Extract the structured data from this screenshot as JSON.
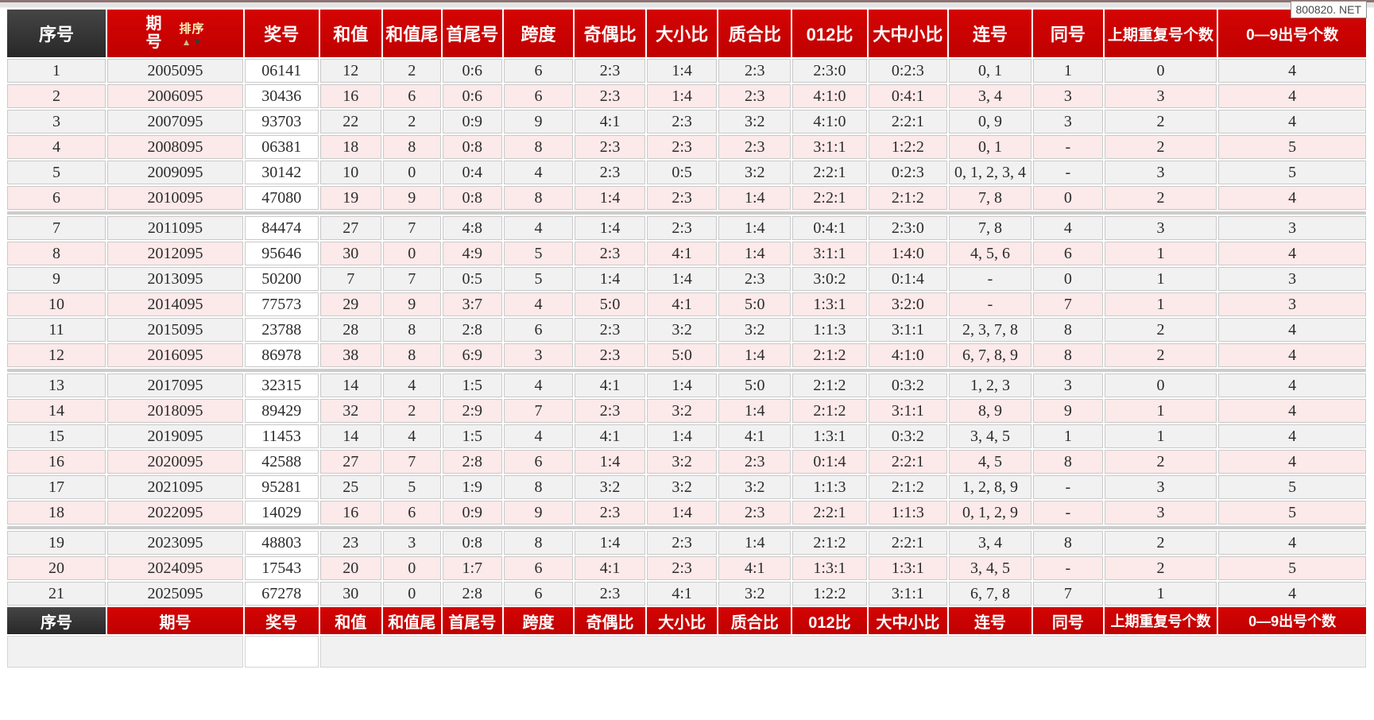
{
  "watermark": "800820. NET",
  "period_header": {
    "line1": "期",
    "line2": "号"
  },
  "sort": {
    "label": "排序",
    "asc_icon": "▲",
    "desc_icon": "▼"
  },
  "colors": {
    "header_red": "#cc0000",
    "header_dark": "#333333",
    "row_gray": "#f1f1f1",
    "row_pink": "#fce9e9",
    "number_col_bg": "#ffffff",
    "sort_label": "#fdf3bd"
  },
  "columns": [
    {
      "key": "seq",
      "label": "序号"
    },
    {
      "key": "period",
      "label": "期号"
    },
    {
      "key": "number",
      "label": "奖号"
    },
    {
      "key": "sum",
      "label": "和值"
    },
    {
      "key": "sum_tail",
      "label": "和值尾"
    },
    {
      "key": "first_last",
      "label": "首尾号"
    },
    {
      "key": "span",
      "label": "跨度"
    },
    {
      "key": "odd_even",
      "label": "奇偶比"
    },
    {
      "key": "big_small",
      "label": "大小比"
    },
    {
      "key": "prime_composite",
      "label": "质合比"
    },
    {
      "key": "zero_one_two",
      "label": "012比"
    },
    {
      "key": "big_mid_small",
      "label": "大中小比"
    },
    {
      "key": "consecutive",
      "label": "连号"
    },
    {
      "key": "same",
      "label": "同号"
    },
    {
      "key": "prev_repeat",
      "label": "上期重复号个数"
    },
    {
      "key": "digit_count",
      "label": "0—9出号个数"
    }
  ],
  "group_separators_after_rows": [
    6,
    12,
    18
  ],
  "rows": [
    [
      "1",
      "2005095",
      "06141",
      "12",
      "2",
      "0:6",
      "6",
      "2:3",
      "1:4",
      "2:3",
      "2:3:0",
      "0:2:3",
      "0, 1",
      "1",
      "0",
      "4"
    ],
    [
      "2",
      "2006095",
      "30436",
      "16",
      "6",
      "0:6",
      "6",
      "2:3",
      "1:4",
      "2:3",
      "4:1:0",
      "0:4:1",
      "3, 4",
      "3",
      "3",
      "4"
    ],
    [
      "3",
      "2007095",
      "93703",
      "22",
      "2",
      "0:9",
      "9",
      "4:1",
      "2:3",
      "3:2",
      "4:1:0",
      "2:2:1",
      "0, 9",
      "3",
      "2",
      "4"
    ],
    [
      "4",
      "2008095",
      "06381",
      "18",
      "8",
      "0:8",
      "8",
      "2:3",
      "2:3",
      "2:3",
      "3:1:1",
      "1:2:2",
      "0, 1",
      "-",
      "2",
      "5"
    ],
    [
      "5",
      "2009095",
      "30142",
      "10",
      "0",
      "0:4",
      "4",
      "2:3",
      "0:5",
      "3:2",
      "2:2:1",
      "0:2:3",
      "0, 1, 2, 3, 4",
      "-",
      "3",
      "5"
    ],
    [
      "6",
      "2010095",
      "47080",
      "19",
      "9",
      "0:8",
      "8",
      "1:4",
      "2:3",
      "1:4",
      "2:2:1",
      "2:1:2",
      "7, 8",
      "0",
      "2",
      "4"
    ],
    [
      "7",
      "2011095",
      "84474",
      "27",
      "7",
      "4:8",
      "4",
      "1:4",
      "2:3",
      "1:4",
      "0:4:1",
      "2:3:0",
      "7, 8",
      "4",
      "3",
      "3"
    ],
    [
      "8",
      "2012095",
      "95646",
      "30",
      "0",
      "4:9",
      "5",
      "2:3",
      "4:1",
      "1:4",
      "3:1:1",
      "1:4:0",
      "4, 5, 6",
      "6",
      "1",
      "4"
    ],
    [
      "9",
      "2013095",
      "50200",
      "7",
      "7",
      "0:5",
      "5",
      "1:4",
      "1:4",
      "2:3",
      "3:0:2",
      "0:1:4",
      "-",
      "0",
      "1",
      "3"
    ],
    [
      "10",
      "2014095",
      "77573",
      "29",
      "9",
      "3:7",
      "4",
      "5:0",
      "4:1",
      "5:0",
      "1:3:1",
      "3:2:0",
      "-",
      "7",
      "1",
      "3"
    ],
    [
      "11",
      "2015095",
      "23788",
      "28",
      "8",
      "2:8",
      "6",
      "2:3",
      "3:2",
      "3:2",
      "1:1:3",
      "3:1:1",
      "2, 3, 7, 8",
      "8",
      "2",
      "4"
    ],
    [
      "12",
      "2016095",
      "86978",
      "38",
      "8",
      "6:9",
      "3",
      "2:3",
      "5:0",
      "1:4",
      "2:1:2",
      "4:1:0",
      "6, 7, 8, 9",
      "8",
      "2",
      "4"
    ],
    [
      "13",
      "2017095",
      "32315",
      "14",
      "4",
      "1:5",
      "4",
      "4:1",
      "1:4",
      "5:0",
      "2:1:2",
      "0:3:2",
      "1, 2, 3",
      "3",
      "0",
      "4"
    ],
    [
      "14",
      "2018095",
      "89429",
      "32",
      "2",
      "2:9",
      "7",
      "2:3",
      "3:2",
      "1:4",
      "2:1:2",
      "3:1:1",
      "8, 9",
      "9",
      "1",
      "4"
    ],
    [
      "15",
      "2019095",
      "11453",
      "14",
      "4",
      "1:5",
      "4",
      "4:1",
      "1:4",
      "4:1",
      "1:3:1",
      "0:3:2",
      "3, 4, 5",
      "1",
      "1",
      "4"
    ],
    [
      "16",
      "2020095",
      "42588",
      "27",
      "7",
      "2:8",
      "6",
      "1:4",
      "3:2",
      "2:3",
      "0:1:4",
      "2:2:1",
      "4, 5",
      "8",
      "2",
      "4"
    ],
    [
      "17",
      "2021095",
      "95281",
      "25",
      "5",
      "1:9",
      "8",
      "3:2",
      "3:2",
      "3:2",
      "1:1:3",
      "2:1:2",
      "1, 2, 8, 9",
      "-",
      "3",
      "5"
    ],
    [
      "18",
      "2022095",
      "14029",
      "16",
      "6",
      "0:9",
      "9",
      "2:3",
      "1:4",
      "2:3",
      "2:2:1",
      "1:1:3",
      "0, 1, 2, 9",
      "-",
      "3",
      "5"
    ],
    [
      "19",
      "2023095",
      "48803",
      "23",
      "3",
      "0:8",
      "8",
      "1:4",
      "2:3",
      "1:4",
      "2:1:2",
      "2:2:1",
      "3, 4",
      "8",
      "2",
      "4"
    ],
    [
      "20",
      "2024095",
      "17543",
      "20",
      "0",
      "1:7",
      "6",
      "4:1",
      "2:3",
      "4:1",
      "1:3:1",
      "1:3:1",
      "3, 4, 5",
      "-",
      "2",
      "5"
    ],
    [
      "21",
      "2025095",
      "67278",
      "30",
      "0",
      "2:8",
      "6",
      "2:3",
      "4:1",
      "3:2",
      "1:2:2",
      "3:1:1",
      "6, 7, 8",
      "7",
      "1",
      "4"
    ]
  ]
}
